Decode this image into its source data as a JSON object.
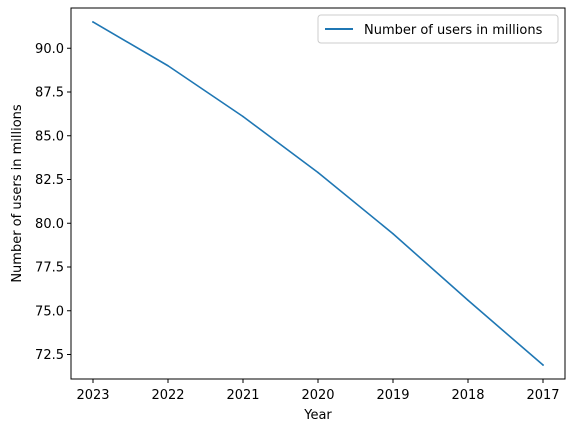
{
  "chart_data": {
    "type": "line",
    "title": "",
    "xlabel": "Year",
    "ylabel": "Number of users in millions",
    "categories": [
      "2023",
      "2022",
      "2021",
      "2020",
      "2019",
      "2018",
      "2017"
    ],
    "series": [
      {
        "name": "Number of users in millions",
        "color": "#1f77b4",
        "values": [
          91.5,
          89.0,
          86.1,
          82.9,
          79.4,
          75.6,
          71.9
        ]
      }
    ],
    "ylim": [
      71.1,
      92.3
    ],
    "yticks": [
      "72.5",
      "75.0",
      "77.5",
      "80.0",
      "82.5",
      "85.0",
      "87.5",
      "90.0"
    ],
    "grid": false,
    "legend": "top-right"
  }
}
